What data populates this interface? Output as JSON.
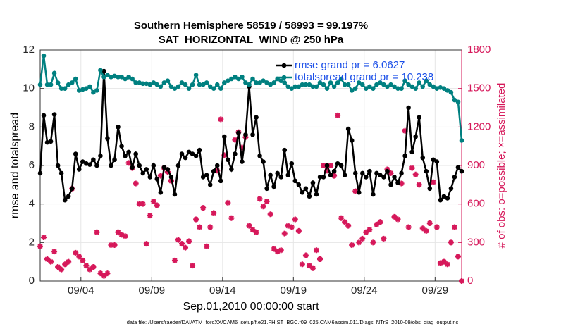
{
  "chart_data": {
    "type": "line",
    "title": "Southern Hemisphere 58519 / 58993 = 99.197%",
    "subtitle": "SAT_HORIZONTAL_WIND @ 250 hPa",
    "x_label": "Sep.01,2010 00:00:00 start",
    "y_label": "rmse and totalspread",
    "y2_label": "# of obs: o=possible; ×=assimilated",
    "footnote": "data file: /Users/raeder/DAI/ATM_forcXX/CAM6_setup/f.e21.FHIST_BGC.f09_025.CAM6assim.011/Diags_NTrS_2010-09/obs_diag_output.nc",
    "legend_position": "northeast",
    "grid": true,
    "xlim": [
      1.125,
      30.875
    ],
    "xticks": [
      {
        "value": 4,
        "label": "09/04"
      },
      {
        "value": 9,
        "label": "09/09"
      },
      {
        "value": 14,
        "label": "09/14"
      },
      {
        "value": 19,
        "label": "09/19"
      },
      {
        "value": 24,
        "label": "09/24"
      },
      {
        "value": 29,
        "label": "09/29"
      }
    ],
    "ylim": [
      0,
      12
    ],
    "yticks": [
      0,
      2,
      4,
      6,
      8,
      10,
      12
    ],
    "y2lim": [
      0,
      1800
    ],
    "y2ticks": [
      0,
      300,
      600,
      900,
      1200,
      1500,
      1800
    ],
    "x": [
      1.125,
      1.375,
      1.625,
      1.875,
      2.125,
      2.375,
      2.625,
      2.875,
      3.125,
      3.375,
      3.625,
      3.875,
      4.125,
      4.375,
      4.625,
      4.875,
      5.125,
      5.375,
      5.625,
      5.875,
      6.125,
      6.375,
      6.625,
      6.875,
      7.125,
      7.375,
      7.625,
      7.875,
      8.125,
      8.375,
      8.625,
      8.875,
      9.125,
      9.375,
      9.625,
      9.875,
      10.125,
      10.375,
      10.625,
      10.875,
      11.125,
      11.375,
      11.625,
      11.875,
      12.125,
      12.375,
      12.625,
      12.875,
      13.125,
      13.375,
      13.625,
      13.875,
      14.125,
      14.375,
      14.625,
      14.875,
      15.125,
      15.375,
      15.625,
      15.875,
      16.125,
      16.375,
      16.625,
      16.875,
      17.125,
      17.375,
      17.625,
      17.875,
      18.125,
      18.375,
      18.625,
      18.875,
      19.125,
      19.375,
      19.625,
      19.875,
      20.125,
      20.375,
      20.625,
      20.875,
      21.125,
      21.375,
      21.625,
      21.875,
      22.125,
      22.375,
      22.625,
      22.875,
      23.125,
      23.375,
      23.625,
      23.875,
      24.125,
      24.375,
      24.625,
      24.875,
      25.125,
      25.375,
      25.625,
      25.875,
      26.125,
      26.375,
      26.625,
      26.875,
      27.125,
      27.375,
      27.625,
      27.875,
      28.125,
      28.375,
      28.625,
      28.875,
      29.125,
      29.375,
      29.625,
      29.875,
      30.125,
      30.375,
      30.625,
      30.875
    ],
    "series": [
      {
        "name": "rmse grand pr = 6.0627",
        "color": "#000000",
        "axis": "y",
        "values": [
          5.6,
          8.6,
          7.2,
          7.25,
          8.65,
          6.0,
          5.6,
          4.2,
          4.4,
          4.8,
          6.6,
          5.8,
          6.2,
          6.1,
          6.05,
          6.3,
          6.0,
          6.5,
          10.9,
          7.4,
          6.0,
          6.3,
          8.0,
          7.0,
          6.5,
          6.7,
          5.9,
          6.6,
          6.0,
          5.6,
          5.8,
          5.4,
          6.0,
          5.3,
          4.6,
          5.9,
          5.8,
          5.4,
          4.5,
          6.0,
          6.6,
          6.4,
          6.7,
          6.6,
          6.5,
          6.8,
          5.4,
          5.5,
          5.0,
          5.7,
          6.0,
          5.2,
          7.5,
          6.3,
          5.8,
          6.6,
          7.7,
          6.2,
          7.6,
          10.1,
          7.6,
          8.5,
          6.5,
          6.2,
          4.8,
          5.5,
          4.9,
          5.6,
          5.4,
          6.8,
          5.5,
          6.1,
          5.2,
          5.0,
          4.6,
          4.8,
          4.4,
          5.1,
          4.5,
          5.4,
          5.4,
          6.0,
          5.5,
          5.7,
          6.1,
          6.0,
          5.5,
          7.9,
          7.3,
          5.6,
          4.6,
          5.6,
          5.4,
          5.7,
          4.5,
          5.6,
          5.5,
          5.4,
          5.7,
          5.0,
          5.4,
          5.1,
          5.6,
          6.5,
          9.0,
          6.7,
          7.5,
          8.5,
          6.4,
          5.7,
          4.8,
          6.3,
          6.2,
          4.2,
          4.4,
          4.3,
          4.8,
          5.4,
          5.9,
          5.7
        ]
      },
      {
        "name": "totalspread grand pr = 10.238",
        "color": "#008080",
        "axis": "y",
        "values": [
          10.2,
          11.7,
          10.2,
          10.2,
          10.8,
          10.3,
          10.0,
          10.0,
          10.2,
          10.3,
          10.5,
          9.9,
          9.95,
          10.0,
          10.1,
          9.8,
          9.9,
          10.95,
          10.6,
          10.7,
          10.6,
          10.65,
          10.6,
          10.6,
          10.5,
          10.6,
          10.5,
          10.3,
          10.3,
          10.25,
          10.25,
          10.2,
          10.3,
          10.2,
          10.1,
          10.3,
          10.4,
          10.1,
          10.0,
          10.1,
          10.3,
          10.2,
          10.0,
          10.2,
          10.7,
          10.2,
          10.2,
          10.3,
          10.1,
          10.0,
          10.2,
          10.0,
          10.3,
          10.4,
          10.5,
          10.6,
          10.5,
          10.6,
          10.3,
          10.2,
          10.5,
          10.3,
          10.3,
          10.4,
          10.3,
          10.2,
          10.3,
          10.5,
          10.4,
          10.3,
          10.1,
          10.0,
          10.1,
          10.1,
          10.2,
          10.2,
          10.2,
          10.1,
          10.1,
          10.3,
          10.2,
          10.0,
          10.3,
          10.1,
          10.3,
          10.5,
          10.2,
          10.2,
          9.9,
          10.0,
          10.3,
          10.2,
          10.0,
          10.1,
          10.0,
          10.2,
          10.3,
          10.2,
          10.1,
          10.2,
          10.1,
          10.0,
          10.0,
          10.4,
          10.2,
          10.1,
          10.0,
          10.3,
          10.1,
          10.4,
          10.2,
          10.1,
          10.0,
          10.05,
          10.0,
          9.9,
          9.8,
          9.4,
          9.3,
          7.3
        ]
      }
    ],
    "obs_color": "#d6185a",
    "obs_values": [
      270,
      340,
      170,
      150,
      230,
      110,
      90,
      130,
      150,
      720,
      220,
      190,
      160,
      120,
      90,
      110,
      380,
      60,
      40,
      60,
      280,
      280,
      380,
      360,
      350,
      920,
      880,
      760,
      600,
      600,
      290,
      510,
      620,
      590,
      820,
      880,
      850,
      780,
      160,
      320,
      290,
      260,
      310,
      120,
      480,
      420,
      570,
      270,
      420,
      530,
      860,
      1260,
      980,
      610,
      490,
      1100,
      1160,
      1040,
      1120,
      430,
      400,
      380,
      640,
      580,
      620,
      520,
      250,
      230,
      240,
      370,
      430,
      420,
      480,
      390,
      130,
      200,
      120,
      100,
      240,
      170,
      900,
      860,
      900,
      820,
      1290,
      490,
      460,
      430,
      280,
      700,
      300,
      330,
      380,
      400,
      300,
      440,
      460,
      330,
      870,
      840,
      500,
      480,
      760,
      1170,
      420,
      880,
      830,
      750,
      410,
      390,
      450,
      770,
      420,
      140,
      150,
      130,
      300,
      420,
      190,
      0
    ]
  }
}
